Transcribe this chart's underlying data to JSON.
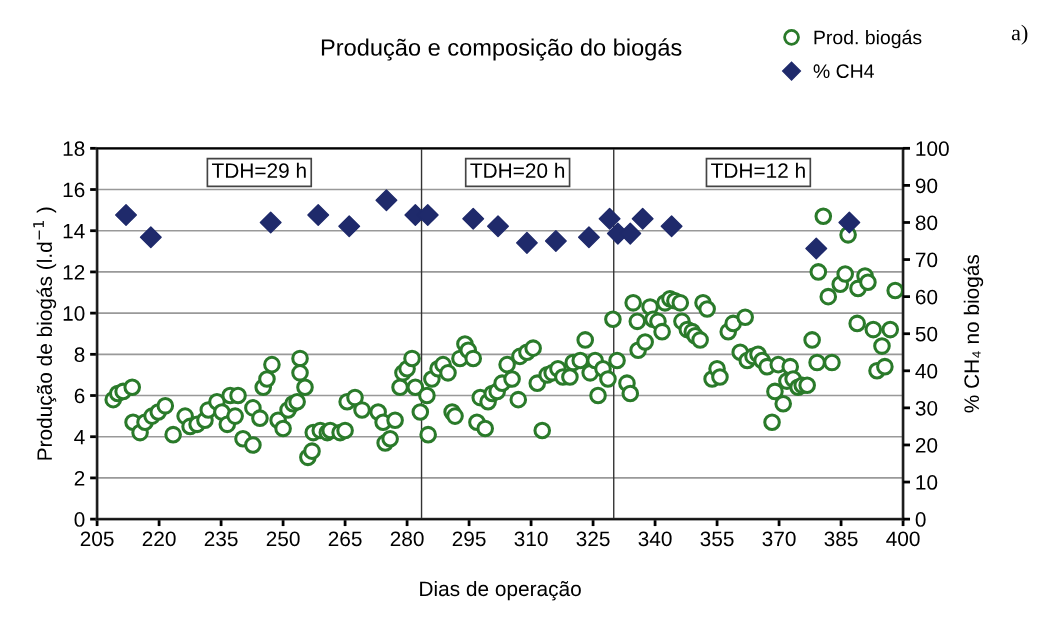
{
  "chart_data": {
    "type": "scatter",
    "title": "Produção e composição do biogás",
    "xlabel": "Dias de operação",
    "ylabel": "Produção de biogás (l.d$^{−1}$ )",
    "y2label": "% CH₄ no biogás",
    "xlim": [
      205,
      400
    ],
    "xticks": [
      205,
      220,
      235,
      250,
      265,
      280,
      295,
      310,
      325,
      340,
      355,
      370,
      385,
      400
    ],
    "ylim": [
      0,
      18
    ],
    "yticks": [
      0,
      2,
      4,
      6,
      8,
      10,
      12,
      14,
      16,
      18
    ],
    "y2lim": [
      0,
      100
    ],
    "y2ticks": [
      0,
      10,
      20,
      30,
      40,
      50,
      60,
      70,
      80,
      90,
      100
    ],
    "grid": "y",
    "legend": "top right",
    "ref_lines": [
      {
        "axis": "x",
        "value": 283.5,
        "color": "#333333"
      },
      {
        "axis": "x",
        "value": 330,
        "color": "#333333"
      }
    ],
    "annotations": [
      "TDH=29 h",
      "TDH=20 h",
      "TDH=12 h",
      "a)"
    ],
    "series": [
      {
        "name": "Prod. biogás",
        "color": "#2a7a2a",
        "marker": "circle",
        "axis": "y",
        "x": [
          208.9,
          210,
          211.3,
          213.5,
          213.7,
          215.4,
          216.6,
          218.3,
          219.8,
          221.5,
          223.4,
          226.3,
          227.5,
          229.2,
          231.1,
          231.9,
          234,
          235.2,
          236.5,
          237.2,
          239.1,
          238.4,
          240.3,
          242.7,
          242.7,
          244.4,
          245.2,
          246.1,
          247.3,
          248.8,
          250,
          251.2,
          252.4,
          253.4,
          254.1,
          254.1,
          255.3,
          256,
          257,
          257.3,
          259,
          260.7,
          261.4,
          263.8,
          265,
          265.5,
          267.4,
          269.1,
          273,
          274.2,
          274.7,
          275.9,
          277.1,
          278.3,
          279,
          280,
          281.2,
          282,
          283.2,
          284.8,
          285.1,
          286,
          287.5,
          288.7,
          289.9,
          290.9,
          291.6,
          292.8,
          294,
          294.8,
          296,
          296.9,
          298.9,
          297.7,
          299.6,
          300.6,
          301.8,
          303,
          304.2,
          305.4,
          306.9,
          307.3,
          309,
          310.5,
          311.5,
          312.7,
          313.9,
          315.1,
          316.5,
          317.7,
          319.4,
          320.2,
          321.9,
          323.1,
          324.3,
          325.5,
          326.2,
          327.4,
          328.6,
          329.8,
          330.8,
          333.2,
          334,
          334.7,
          335.7,
          335.9,
          337.6,
          338.8,
          339.5,
          340.7,
          341.7,
          342.4,
          343.6,
          344.8,
          346.1,
          346.5,
          347.8,
          349,
          349.7,
          350.9,
          351.6,
          352.6,
          353.8,
          355,
          355.7,
          357.7,
          358.9,
          361.8,
          360.6,
          362.3,
          363.7,
          364.9,
          365.9,
          367.1,
          368.3,
          369,
          369.8,
          371,
          371.9,
          372.7,
          373.4,
          374.6,
          375.6,
          376.8,
          378,
          379.2,
          379.5,
          380.7,
          381.9,
          382.8,
          384.8,
          386,
          386.7,
          388.9,
          389.1,
          390.8,
          391.5,
          392.8,
          393.7,
          394.9,
          395.6,
          396.9,
          398.1
        ],
        "values": [
          5.8,
          6.1,
          6.2,
          6.4,
          4.7,
          4.2,
          4.7,
          5.0,
          5.2,
          5.5,
          4.1,
          5.0,
          4.5,
          4.6,
          4.8,
          5.3,
          5.7,
          5.2,
          4.6,
          6.0,
          6.0,
          5.0,
          3.9,
          3.6,
          5.4,
          4.9,
          6.4,
          6.8,
          7.5,
          4.8,
          4.4,
          5.3,
          5.6,
          5.7,
          7.8,
          7.1,
          6.4,
          3.0,
          3.3,
          4.2,
          4.3,
          4.2,
          4.3,
          4.2,
          4.3,
          5.7,
          5.9,
          5.3,
          5.2,
          4.7,
          3.7,
          3.9,
          4.8,
          6.4,
          7.1,
          7.3,
          7.8,
          6.4,
          5.2,
          6.0,
          4.1,
          6.8,
          7.3,
          7.5,
          7.1,
          5.2,
          5.0,
          7.8,
          8.5,
          8.2,
          7.8,
          4.7,
          4.4,
          5.9,
          5.7,
          6.1,
          6.2,
          6.6,
          7.5,
          6.8,
          5.8,
          7.9,
          8.1,
          8.3,
          6.6,
          4.3,
          7.0,
          7.1,
          7.3,
          6.9,
          6.9,
          7.6,
          7.7,
          8.7,
          7.1,
          7.7,
          6.0,
          7.3,
          6.8,
          9.7,
          7.7,
          6.6,
          6.1,
          10.5,
          9.6,
          8.2,
          8.6,
          10.3,
          9.7,
          9.6,
          9.1,
          10.5,
          10.7,
          10.6,
          10.5,
          9.6,
          9.2,
          9.1,
          8.9,
          8.7,
          10.5,
          10.2,
          6.8,
          7.3,
          6.9,
          9.1,
          9.5,
          9.8,
          8.1,
          7.7,
          7.9,
          8.0,
          7.7,
          7.4,
          4.7,
          6.2,
          7.5,
          5.6,
          6.7,
          7.4,
          6.8,
          6.4,
          6.5,
          6.5,
          8.7,
          7.6,
          12.0,
          14.7,
          10.8,
          7.6,
          11.4,
          11.9,
          13.8,
          9.5,
          11.2,
          11.8,
          11.5,
          9.2,
          7.2,
          8.4,
          7.4,
          9.2,
          11.1
        ]
      },
      {
        "name": "% CH4",
        "color": "#1f2a6b",
        "marker": "diamond",
        "axis": "y2",
        "x": [
          212,
          218,
          247,
          258.5,
          266,
          275,
          282,
          285,
          296,
          302,
          309,
          316,
          324,
          329,
          331,
          334,
          337,
          344,
          379,
          387
        ],
        "values": [
          82,
          76,
          80,
          82,
          79,
          86,
          82,
          82,
          81,
          79,
          74.5,
          75,
          76,
          81,
          77,
          77,
          81,
          79,
          73,
          80
        ]
      }
    ]
  }
}
